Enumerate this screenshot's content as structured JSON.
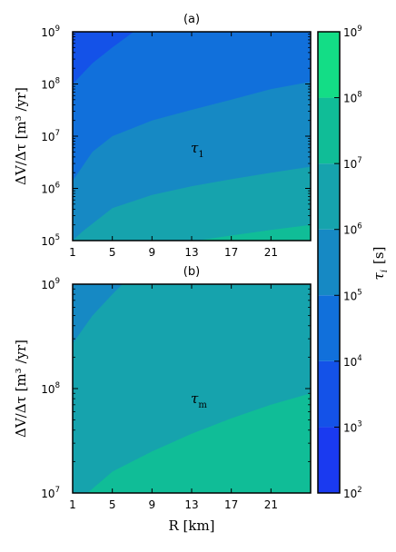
{
  "chart_data": [
    {
      "panel": "(a)",
      "type": "contourf",
      "title": "(a)",
      "xlabel": "",
      "ylabel": "ΔV/Δτ  [m³ /yr]",
      "xlim": [
        1,
        25
      ],
      "ylim": [
        100000,
        1000000000
      ],
      "yscale": "log",
      "xticks": [
        1,
        5,
        9,
        13,
        17,
        21
      ],
      "xtick_labels": [
        "1",
        "5",
        "9",
        "13",
        "17",
        "21"
      ],
      "yticks": [
        100000,
        1000000,
        10000000,
        100000000,
        1000000000
      ],
      "ytick_labels": [
        [
          "10",
          "5"
        ],
        [
          "10",
          "6"
        ],
        [
          "10",
          "7"
        ],
        [
          "10",
          "8"
        ],
        [
          "10",
          "9"
        ]
      ],
      "annotation": {
        "text": "τ",
        "sub": "1",
        "x": 13,
        "y": 7000000
      },
      "quantity": "tau_1",
      "levels": [
        3,
        4,
        5,
        6,
        7,
        8
      ],
      "level_boundaries": [
        {
          "level": 4,
          "points": [
            [
              1,
              100000000
            ],
            [
              3,
              250000000
            ],
            [
              5,
              500000000
            ],
            [
              7,
              950000000
            ],
            [
              8,
              1200000000
            ]
          ]
        },
        {
          "level": 5,
          "points": [
            [
              1,
              1400000
            ],
            [
              3,
              5000000
            ],
            [
              5,
              10000000
            ],
            [
              9,
              20000000
            ],
            [
              13,
              32000000
            ],
            [
              17,
              50000000
            ],
            [
              21,
              80000000
            ],
            [
              25,
              110000000
            ]
          ]
        },
        {
          "level": 6,
          "points": [
            [
              1,
              100000
            ],
            [
              2,
              150000
            ],
            [
              5,
              420000
            ],
            [
              9,
              750000
            ],
            [
              13,
              1100000
            ],
            [
              17,
              1500000
            ],
            [
              21,
              2000000
            ],
            [
              25,
              2600000
            ]
          ]
        },
        {
          "level": 7,
          "points": [
            [
              13.5,
              100000
            ],
            [
              17,
              125000
            ],
            [
              21,
              160000
            ],
            [
              25,
              200000
            ]
          ]
        }
      ]
    },
    {
      "panel": "(b)",
      "type": "contourf",
      "title": "(b)",
      "xlabel": "R  [km]",
      "ylabel": "ΔV/Δτ  [m³ /yr]",
      "xlim": [
        1,
        25
      ],
      "ylim": [
        10000000,
        1000000000
      ],
      "yscale": "log",
      "xticks": [
        1,
        5,
        9,
        13,
        17,
        21
      ],
      "xtick_labels": [
        "1",
        "5",
        "9",
        "13",
        "17",
        "21"
      ],
      "yticks": [
        10000000,
        100000000,
        1000000000
      ],
      "ytick_labels": [
        [
          "10",
          "7"
        ],
        [
          "10",
          "8"
        ],
        [
          "10",
          "9"
        ]
      ],
      "annotation": {
        "text": "τ",
        "sub": "m",
        "x": 13,
        "y": 70000000
      },
      "quantity": "tau_m",
      "levels": [
        5,
        6,
        7
      ],
      "level_boundaries": [
        {
          "level": 6,
          "points": [
            [
              1,
              270000000
            ],
            [
              3,
              500000000
            ],
            [
              5,
              800000000
            ],
            [
              6,
              1000000000
            ]
          ]
        },
        {
          "level": 7,
          "points": [
            [
              2.5,
              10000000
            ],
            [
              5,
              16000000
            ],
            [
              9,
              25000000
            ],
            [
              13,
              37000000
            ],
            [
              17,
              52000000
            ],
            [
              21,
              70000000
            ],
            [
              25,
              90000000
            ]
          ]
        }
      ]
    }
  ],
  "colorbar": {
    "label": "τ",
    "label_sub": "i",
    "label_unit": "[s]",
    "range": [
      100,
      1000000000
    ],
    "scale": "log",
    "ticks": [
      [
        "10",
        "2"
      ],
      [
        "10",
        "3"
      ],
      [
        "10",
        "4"
      ],
      [
        "10",
        "5"
      ],
      [
        "10",
        "6"
      ],
      [
        "10",
        "7"
      ],
      [
        "10",
        "8"
      ],
      [
        "10",
        "9"
      ]
    ],
    "level_colors": [
      {
        "from": 2,
        "to": 3,
        "color": "#1a3af0"
      },
      {
        "from": 3,
        "to": 4,
        "color": "#1452e8"
      },
      {
        "from": 4,
        "to": 5,
        "color": "#1170db"
      },
      {
        "from": 5,
        "to": 6,
        "color": "#1689c4"
      },
      {
        "from": 6,
        "to": 7,
        "color": "#16a3ad"
      },
      {
        "from": 7,
        "to": 8,
        "color": "#10bd97"
      },
      {
        "from": 8,
        "to": 9,
        "color": "#13dd86"
      }
    ]
  }
}
